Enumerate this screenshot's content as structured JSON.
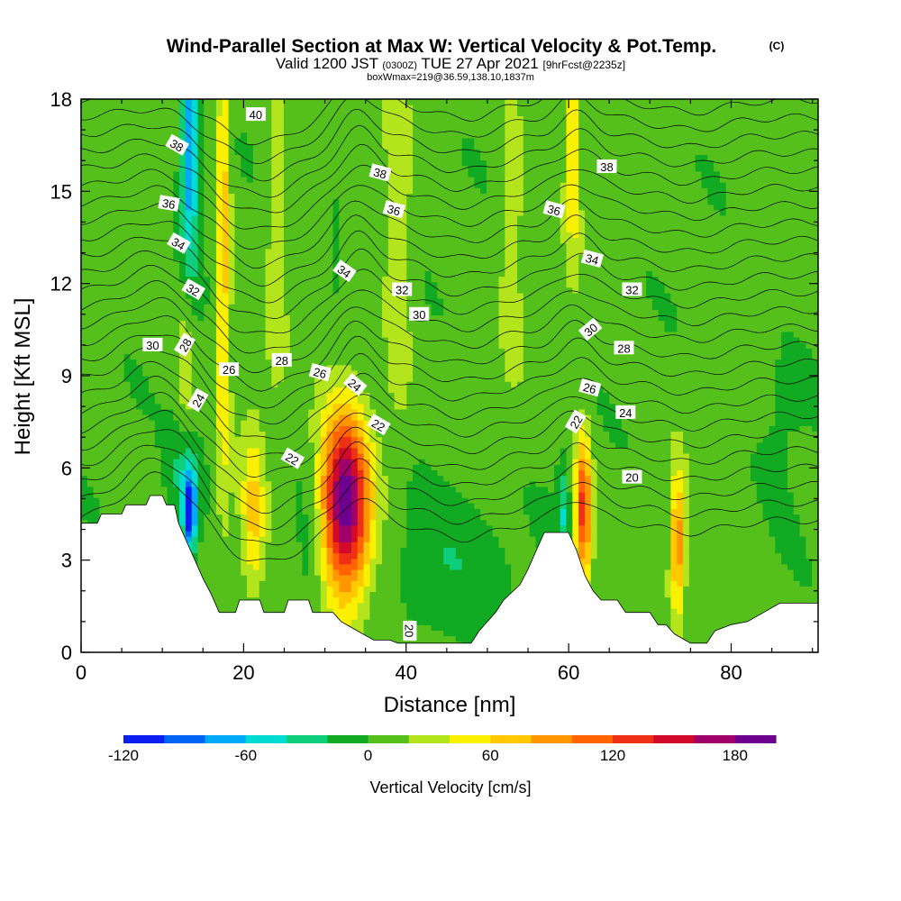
{
  "header": {
    "title": "Wind-Parallel Section at Max W: Vertical Velocity & Pot.Temp.",
    "copyright": "(C)",
    "valid_prefix": "Valid 1200 JST",
    "valid_zulu": "(0300Z)",
    "valid_date": "TUE 27 Apr 2021",
    "forecast": "[9hrFcst@2235z]",
    "box_info": "boxWmax=219@36.59,138.10,1837m"
  },
  "chart_data": {
    "type": "heatmap",
    "xlabel": "Distance [nm]",
    "ylabel": "Height [Kft MSL]",
    "xlim": [
      0,
      90.7
    ],
    "ylim": [
      0,
      18
    ],
    "xticks": [
      0,
      20,
      40,
      60,
      80
    ],
    "yticks": [
      0,
      3,
      6,
      9,
      12,
      15,
      18
    ],
    "colorbar": {
      "label": "Vertical Velocity [cm/s]",
      "ticks": [
        -120,
        -60,
        0,
        60,
        120,
        180
      ],
      "levels": [
        -120,
        -100,
        -80,
        -60,
        -40,
        -20,
        0,
        20,
        40,
        60,
        80,
        100,
        120,
        140,
        160,
        180,
        200
      ],
      "colors": [
        "#0a1ef0",
        "#0064f5",
        "#00aaf8",
        "#00dcd2",
        "#10cf7c",
        "#11aa22",
        "#55c01c",
        "#b4e41c",
        "#faf000",
        "#ffc800",
        "#ff9600",
        "#ff6400",
        "#f03014",
        "#d20a2a",
        "#a0006a",
        "#6e0090"
      ]
    },
    "terrain": [
      [
        0,
        4.2
      ],
      [
        2,
        4.2
      ],
      [
        2.5,
        4.5
      ],
      [
        5,
        4.5
      ],
      [
        5.5,
        4.8
      ],
      [
        8,
        4.8
      ],
      [
        8.5,
        5.1
      ],
      [
        10,
        5.1
      ],
      [
        10.5,
        4.8
      ],
      [
        11.5,
        4.8
      ],
      [
        12,
        4.2
      ],
      [
        13,
        3.6
      ],
      [
        14,
        3.0
      ],
      [
        15,
        2.4
      ],
      [
        16,
        1.9
      ],
      [
        17,
        1.3
      ],
      [
        19,
        1.3
      ],
      [
        19.5,
        1.7
      ],
      [
        22,
        1.7
      ],
      [
        22.5,
        1.3
      ],
      [
        25,
        1.3
      ],
      [
        25.5,
        1.7
      ],
      [
        28,
        1.7
      ],
      [
        28.5,
        1.3
      ],
      [
        31,
        1.3
      ],
      [
        32,
        1.0
      ],
      [
        34,
        0.7
      ],
      [
        36,
        0.4
      ],
      [
        38,
        0.4
      ],
      [
        39,
        0.3
      ],
      [
        43,
        0.3
      ],
      [
        44,
        0.3
      ],
      [
        48,
        0.3
      ],
      [
        49,
        0.7
      ],
      [
        50,
        1.0
      ],
      [
        51,
        1.3
      ],
      [
        52,
        1.7
      ],
      [
        54,
        2.2
      ],
      [
        55,
        2.7
      ],
      [
        56,
        3.3
      ],
      [
        57,
        3.9
      ],
      [
        60,
        3.9
      ],
      [
        61,
        3.3
      ],
      [
        62,
        2.5
      ],
      [
        63,
        2.0
      ],
      [
        64,
        1.7
      ],
      [
        66,
        1.7
      ],
      [
        67,
        1.3
      ],
      [
        70,
        1.3
      ],
      [
        71,
        0.9
      ],
      [
        72,
        0.9
      ],
      [
        73,
        0.6
      ],
      [
        75,
        0.3
      ],
      [
        77,
        0.3
      ],
      [
        78,
        0.7
      ],
      [
        80,
        0.9
      ],
      [
        82,
        1.0
      ],
      [
        84,
        1.3
      ],
      [
        86,
        1.6
      ],
      [
        90.7,
        1.6
      ]
    ],
    "w_features": [
      {
        "x": 32.5,
        "y": 4.8,
        "sx": 2.2,
        "sy": 2.1,
        "w": 195
      },
      {
        "x": 61.8,
        "y": 4.6,
        "sx": 0.7,
        "sy": 1.7,
        "w": 125
      },
      {
        "x": 73.4,
        "y": 3.6,
        "sx": 0.6,
        "sy": 1.6,
        "w": 90
      },
      {
        "x": 21.2,
        "y": 4.5,
        "sx": 1.0,
        "sy": 2.0,
        "w": 55
      },
      {
        "x": 17.5,
        "y": 14.0,
        "sx": 0.6,
        "sy": 6.0,
        "w": 65
      },
      {
        "x": 13.0,
        "y": 10.5,
        "sx": 0.8,
        "sy": 3.0,
        "w": 40
      },
      {
        "x": 60.5,
        "y": 16.5,
        "sx": 0.6,
        "sy": 2.5,
        "w": 55
      },
      {
        "x": 24.0,
        "y": 14.0,
        "sx": 0.8,
        "sy": 4.0,
        "w": 25
      },
      {
        "x": 39.0,
        "y": 12.0,
        "sx": 1.3,
        "sy": 5.0,
        "w": 25
      },
      {
        "x": 53.0,
        "y": 15.0,
        "sx": 1.0,
        "sy": 4.0,
        "w": 25
      },
      {
        "x": 13.3,
        "y": 16.0,
        "sx": 0.8,
        "sy": 3.5,
        "w": -90
      },
      {
        "x": 13.3,
        "y": 4.5,
        "sx": 0.6,
        "sy": 1.0,
        "w": -110
      },
      {
        "x": 13.0,
        "y": 5.8,
        "sx": 1.6,
        "sy": 1.3,
        "w": -40
      },
      {
        "x": 44.0,
        "y": 3.0,
        "sx": 6.0,
        "sy": 2.0,
        "w": -28
      },
      {
        "x": 28.5,
        "y": 3.5,
        "sx": 1.5,
        "sy": 2.2,
        "w": -22
      },
      {
        "x": 59.3,
        "y": 4.6,
        "sx": 0.5,
        "sy": 1.2,
        "w": -42
      },
      {
        "x": 31.5,
        "y": 13.5,
        "sx": 0.5,
        "sy": 1.2,
        "w": -30
      },
      {
        "x": 86.0,
        "y": 8.0,
        "sx": 3.0,
        "sy": 2.0,
        "w": -15
      }
    ],
    "pot_temp_contours": {
      "levels": [
        20,
        22,
        24,
        26,
        28,
        30,
        32,
        34,
        36,
        38,
        40
      ],
      "labels": [
        {
          "text": "40",
          "x": 21.5,
          "y": 17.5,
          "rot": 0
        },
        {
          "text": "38",
          "x": 11.8,
          "y": 16.5,
          "rot": 30
        },
        {
          "text": "38",
          "x": 36.8,
          "y": 15.6,
          "rot": 15
        },
        {
          "text": "38",
          "x": 64.7,
          "y": 15.8,
          "rot": 0
        },
        {
          "text": "36",
          "x": 10.8,
          "y": 14.6,
          "rot": 10
        },
        {
          "text": "36",
          "x": 38.5,
          "y": 14.4,
          "rot": 15
        },
        {
          "text": "36",
          "x": 58.2,
          "y": 14.4,
          "rot": 15
        },
        {
          "text": "34",
          "x": 12.0,
          "y": 13.3,
          "rot": 30
        },
        {
          "text": "34",
          "x": 32.4,
          "y": 12.4,
          "rot": 35
        },
        {
          "text": "34",
          "x": 62.9,
          "y": 12.8,
          "rot": 15
        },
        {
          "text": "32",
          "x": 13.8,
          "y": 11.8,
          "rot": 30
        },
        {
          "text": "32",
          "x": 39.5,
          "y": 11.8,
          "rot": 0
        },
        {
          "text": "32",
          "x": 67.8,
          "y": 11.8,
          "rot": 0
        },
        {
          "text": "30",
          "x": 8.8,
          "y": 10.0,
          "rot": 0
        },
        {
          "text": "30",
          "x": 41.6,
          "y": 11.0,
          "rot": 0
        },
        {
          "text": "30",
          "x": 62.7,
          "y": 10.5,
          "rot": -40
        },
        {
          "text": "28",
          "x": 12.8,
          "y": 10.0,
          "rot": -60
        },
        {
          "text": "28",
          "x": 24.7,
          "y": 9.5,
          "rot": 0
        },
        {
          "text": "28",
          "x": 66.8,
          "y": 9.9,
          "rot": 0
        },
        {
          "text": "26",
          "x": 18.2,
          "y": 9.2,
          "rot": 0
        },
        {
          "text": "26",
          "x": 29.4,
          "y": 9.1,
          "rot": 15
        },
        {
          "text": "26",
          "x": 62.6,
          "y": 8.6,
          "rot": 15
        },
        {
          "text": "24",
          "x": 14.4,
          "y": 8.2,
          "rot": -60
        },
        {
          "text": "24",
          "x": 33.7,
          "y": 8.7,
          "rot": 40
        },
        {
          "text": "24",
          "x": 67.0,
          "y": 7.8,
          "rot": 0
        },
        {
          "text": "22",
          "x": 36.6,
          "y": 7.4,
          "rot": 30
        },
        {
          "text": "22",
          "x": 26.0,
          "y": 6.3,
          "rot": 30
        },
        {
          "text": "22",
          "x": 60.9,
          "y": 7.5,
          "rot": -60
        },
        {
          "text": "20",
          "x": 67.8,
          "y": 5.7,
          "rot": 0
        },
        {
          "text": "20",
          "x": 40.4,
          "y": 0.7,
          "rot": 90
        }
      ]
    }
  }
}
